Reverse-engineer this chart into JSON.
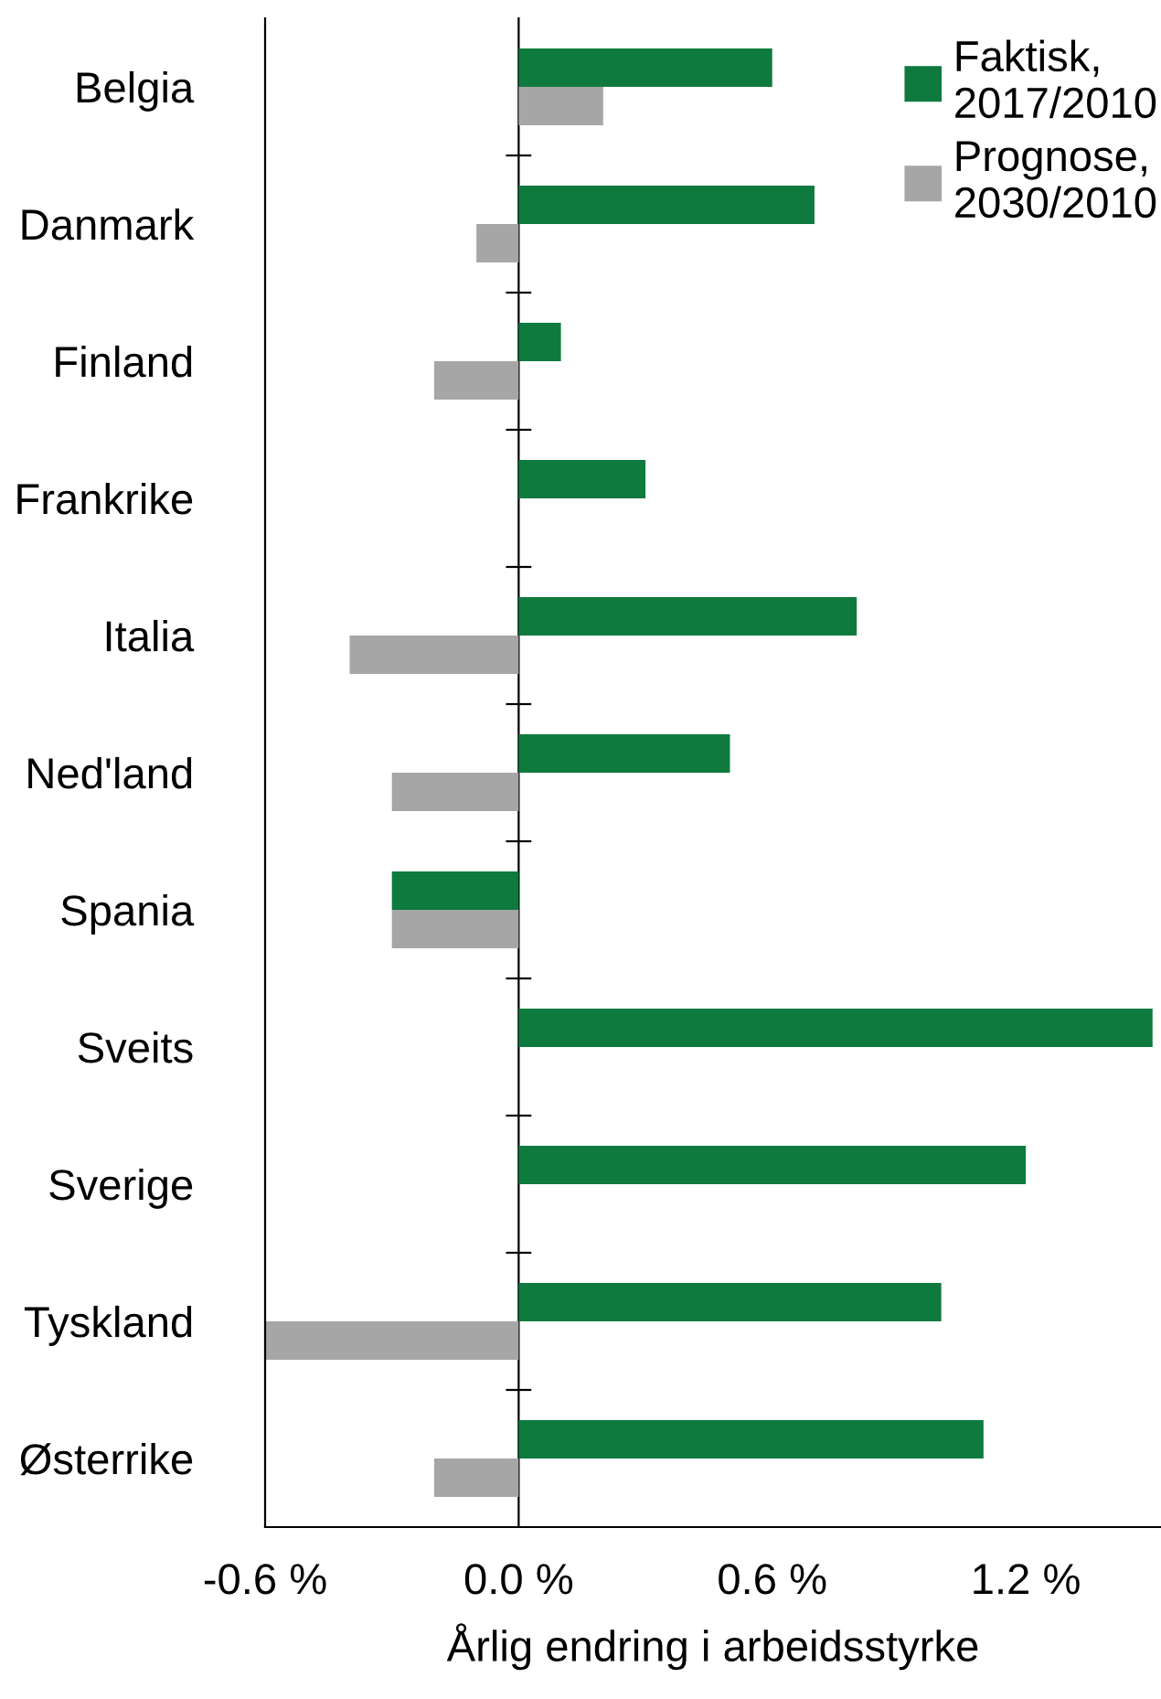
{
  "chart_data": {
    "type": "bar",
    "orientation": "horizontal",
    "xlabel": "Årlig endring i arbeidsstyrke",
    "categories": [
      "Belgia",
      "Danmark",
      "Finland",
      "Frankrike",
      "Italia",
      "Ned'land",
      "Spania",
      "Sveits",
      "Sverige",
      "Tyskland",
      "Østerrike"
    ],
    "series": [
      {
        "name": "Faktisk, 2017/2010",
        "color": "#0e7a3e",
        "values": [
          0.6,
          0.7,
          0.1,
          0.3,
          0.8,
          0.5,
          -0.3,
          1.5,
          1.2,
          1.0,
          1.1
        ]
      },
      {
        "name": "Prognose, 2030/2010",
        "color": "#a6a6a6",
        "values": [
          0.2,
          -0.1,
          -0.2,
          0,
          -0.4,
          -0.3,
          -0.3,
          0,
          0,
          -0.6,
          -0.2
        ]
      }
    ],
    "xlim": [
      -0.6,
      1.52
    ],
    "xticks": [
      {
        "value": -0.6,
        "label": "-0.6 %"
      },
      {
        "value": 0.0,
        "label": "0.0 %"
      },
      {
        "value": 0.6,
        "label": "0.6 %"
      },
      {
        "value": 1.2,
        "label": "1.2 %"
      }
    ],
    "legend": "top right"
  }
}
